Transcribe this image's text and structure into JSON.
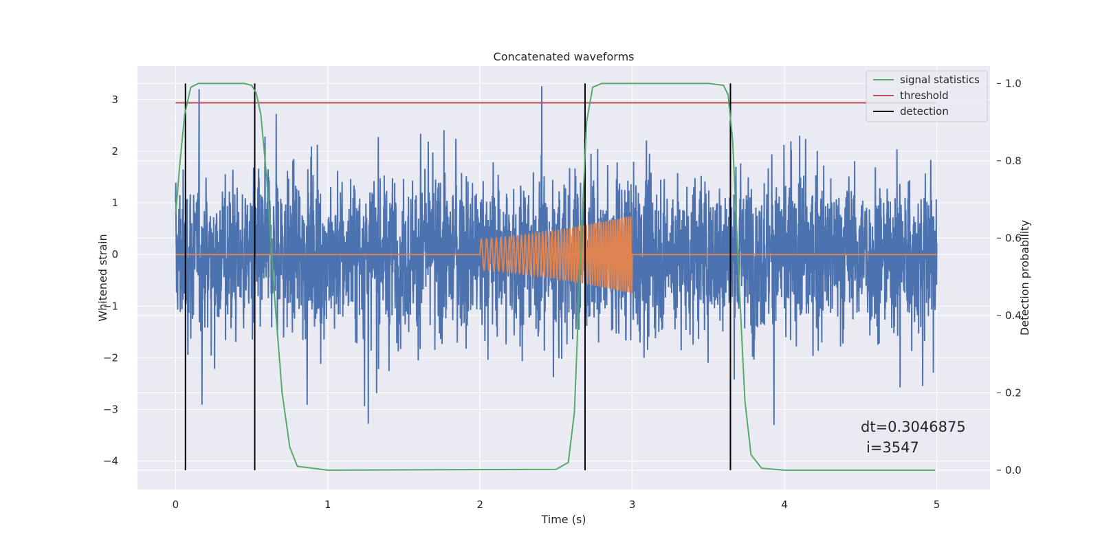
{
  "chart_data": {
    "type": "line",
    "title": "Concatenated waveforms",
    "xlabel": "Time (s)",
    "ylabel": "Whitened strain",
    "y2label": "Detection probability",
    "xlim": [
      -0.25,
      5.35
    ],
    "ylim": [
      -4.55,
      3.65
    ],
    "y2lim": [
      -0.05,
      1.045
    ],
    "x_ticks": [
      0,
      1,
      2,
      3,
      4,
      5
    ],
    "y_ticks": [
      -4,
      -3,
      -2,
      -1,
      0,
      1,
      2,
      3
    ],
    "y2_ticks": [
      0.0,
      0.2,
      0.4,
      0.6,
      0.8,
      1.0
    ],
    "grid": true,
    "legend_position": "top-right",
    "colors": {
      "strain": "#4c72b0",
      "waveform": "#dd8452",
      "signal_statistics": "#55a868",
      "threshold": "#c44e52",
      "detection": "#000000",
      "background": "#eaeaf2"
    },
    "series": [
      {
        "name": "",
        "description_role": "whitened strain noise",
        "x_range": [
          0,
          5
        ],
        "envelope_typical": [
          -1.2,
          1.2
        ],
        "peak_min": -3.3,
        "peak_max": 3.45
      },
      {
        "name": "",
        "description_role": "injected waveform",
        "x": [
          0,
          2,
          2,
          2.5,
          3,
          3,
          5
        ],
        "amplitude": [
          0,
          0,
          0.35,
          0.5,
          0.75,
          0,
          0
        ]
      },
      {
        "name": "signal statistics",
        "axis": "right",
        "x": [
          0,
          0.03,
          0.06,
          0.1,
          0.15,
          0.25,
          0.45,
          0.5,
          0.53,
          0.56,
          0.6,
          0.65,
          0.7,
          0.75,
          0.8,
          1.0,
          1.7,
          2.5,
          2.58,
          2.62,
          2.66,
          2.7,
          2.74,
          2.8,
          3.0,
          3.5,
          3.6,
          3.63,
          3.66,
          3.7,
          3.74,
          3.78,
          3.85,
          4.0,
          4.99
        ],
        "y": [
          0.66,
          0.8,
          0.92,
          0.99,
          1.0,
          1.0,
          1.0,
          0.995,
          0.975,
          0.92,
          0.75,
          0.45,
          0.2,
          0.06,
          0.01,
          0.0,
          0.001,
          0.002,
          0.02,
          0.15,
          0.55,
          0.9,
          0.99,
          1.0,
          1.0,
          1.0,
          0.995,
          0.97,
          0.85,
          0.5,
          0.18,
          0.04,
          0.005,
          0.0,
          0.0
        ]
      },
      {
        "name": "threshold",
        "axis": "right",
        "x": [
          0,
          5
        ],
        "y": [
          0.95,
          0.95
        ]
      },
      {
        "name": "detection",
        "axis": "right",
        "x": [
          0.065,
          0.52,
          2.69,
          3.645
        ],
        "y_range": [
          0.0,
          1.0
        ]
      }
    ],
    "annotations": [
      "dt=0.3046875",
      "i=3547"
    ]
  }
}
